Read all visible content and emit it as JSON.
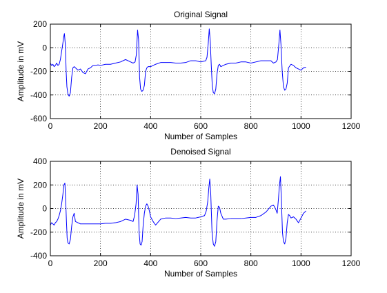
{
  "chart_data": [
    {
      "type": "line",
      "title": "Original Signal",
      "xlabel": "Number of Samples",
      "ylabel": "Amplitude in mV",
      "xlim": [
        0,
        1200
      ],
      "ylim": [
        -600,
        200
      ],
      "xticks": [
        0,
        200,
        400,
        600,
        800,
        1000,
        1200
      ],
      "yticks": [
        -600,
        -400,
        -200,
        0,
        200
      ],
      "xtick_labels": [
        "0",
        "200",
        "400",
        "600",
        "800",
        "1000",
        "1200"
      ],
      "ytick_labels": [
        "-600",
        "-400",
        "-200",
        "0",
        "200"
      ],
      "grid": true,
      "series": [
        {
          "color": "#0000ff",
          "x": [
            0,
            5,
            10,
            15,
            20,
            25,
            30,
            35,
            40,
            45,
            50,
            53,
            56,
            60,
            63,
            66,
            70,
            75,
            80,
            85,
            90,
            95,
            100,
            110,
            120,
            130,
            140,
            150,
            160,
            170,
            180,
            190,
            200,
            220,
            240,
            260,
            280,
            300,
            320,
            330,
            338,
            343,
            348,
            352,
            356,
            360,
            365,
            370,
            375,
            380,
            385,
            390,
            395,
            400,
            420,
            440,
            460,
            480,
            500,
            520,
            540,
            560,
            580,
            600,
            620,
            625,
            630,
            634,
            638,
            642,
            646,
            650,
            655,
            660,
            665,
            670,
            675,
            680,
            700,
            720,
            740,
            760,
            780,
            800,
            820,
            840,
            860,
            880,
            890,
            900,
            906,
            912,
            916,
            920,
            925,
            930,
            935,
            940,
            945,
            950,
            960,
            970,
            980,
            990,
            1000,
            1010,
            1020
          ],
          "y": [
            -130,
            -150,
            -140,
            -160,
            -150,
            -130,
            -150,
            -140,
            -100,
            -30,
            40,
            90,
            120,
            20,
            -200,
            -330,
            -390,
            -410,
            -380,
            -250,
            -170,
            -160,
            -170,
            -190,
            -180,
            -210,
            -220,
            -180,
            -170,
            -150,
            -150,
            -145,
            -150,
            -140,
            -140,
            -130,
            -120,
            -100,
            -120,
            -130,
            -120,
            -60,
            150,
            70,
            -250,
            -350,
            -370,
            -360,
            -320,
            -200,
            -170,
            -160,
            -160,
            -160,
            -140,
            -125,
            -125,
            -125,
            -130,
            -130,
            -125,
            -110,
            -110,
            -120,
            -110,
            -80,
            40,
            160,
            50,
            -150,
            -320,
            -380,
            -390,
            -350,
            -220,
            -150,
            -140,
            -160,
            -140,
            -130,
            -130,
            -120,
            -120,
            -130,
            -120,
            -110,
            -110,
            -110,
            -130,
            -120,
            -100,
            40,
            150,
            30,
            -200,
            -330,
            -360,
            -350,
            -300,
            -170,
            -140,
            -150,
            -170,
            -180,
            -190,
            -170,
            -165
          ]
        }
      ]
    },
    {
      "type": "line",
      "title": "Denoised Signal",
      "xlabel": "Number of Samples",
      "ylabel": "Amplitude in mV",
      "xlim": [
        0,
        1200
      ],
      "ylim": [
        -400,
        400
      ],
      "xticks": [
        0,
        200,
        400,
        600,
        800,
        1000,
        1200
      ],
      "yticks": [
        -400,
        -200,
        0,
        200,
        400
      ],
      "xtick_labels": [
        "0",
        "200",
        "400",
        "600",
        "800",
        "1000",
        "1200"
      ],
      "ytick_labels": [
        "-400",
        "-200",
        "0",
        "200",
        "400"
      ],
      "grid": true,
      "series": [
        {
          "color": "#0000ff",
          "x": [
            0,
            5,
            10,
            15,
            20,
            25,
            30,
            35,
            40,
            45,
            50,
            54,
            58,
            61,
            64,
            67,
            70,
            75,
            80,
            85,
            90,
            95,
            100,
            110,
            120,
            140,
            160,
            180,
            200,
            220,
            240,
            260,
            280,
            300,
            320,
            330,
            336,
            342,
            346,
            350,
            354,
            358,
            362,
            366,
            370,
            375,
            380,
            385,
            390,
            395,
            400,
            410,
            420,
            440,
            460,
            480,
            500,
            520,
            540,
            560,
            580,
            600,
            615,
            622,
            628,
            632,
            636,
            640,
            645,
            650,
            655,
            660,
            665,
            670,
            675,
            680,
            690,
            700,
            720,
            740,
            760,
            780,
            800,
            820,
            840,
            860,
            880,
            890,
            898,
            905,
            910,
            914,
            918,
            922,
            926,
            930,
            935,
            940,
            945,
            950,
            955,
            960,
            970,
            980,
            990,
            1000,
            1010,
            1020
          ],
          "y": [
            -140,
            -120,
            -130,
            -140,
            -120,
            -110,
            -90,
            -60,
            -20,
            40,
            120,
            200,
            215,
            80,
            -100,
            -250,
            -290,
            -300,
            -260,
            -150,
            -70,
            -40,
            -110,
            -120,
            -130,
            -130,
            -130,
            -130,
            -130,
            -125,
            -125,
            -120,
            -110,
            -90,
            -100,
            -110,
            -60,
            40,
            200,
            120,
            -200,
            -300,
            -310,
            -280,
            -150,
            -40,
            20,
            40,
            20,
            -20,
            -70,
            -110,
            -140,
            -90,
            -80,
            -80,
            -85,
            -80,
            -75,
            -80,
            -80,
            -70,
            -60,
            -20,
            60,
            170,
            250,
            120,
            -200,
            -300,
            -320,
            -280,
            -100,
            20,
            10,
            -40,
            -90,
            -90,
            -85,
            -85,
            -85,
            -80,
            -75,
            -75,
            -60,
            -30,
            20,
            30,
            0,
            -40,
            80,
            200,
            270,
            60,
            -200,
            -280,
            -300,
            -250,
            -120,
            -50,
            -60,
            -80,
            -70,
            -90,
            -120,
            -80,
            -40,
            -20
          ]
        }
      ]
    }
  ]
}
